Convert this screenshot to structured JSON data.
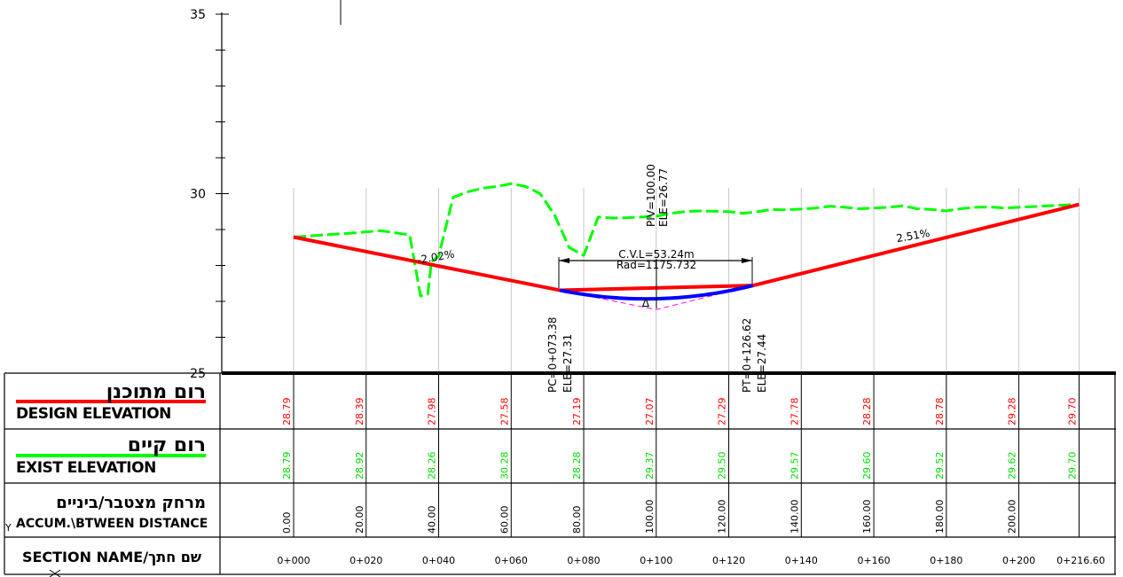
{
  "chart_data": {
    "type": "line",
    "y_axis": {
      "ylim": [
        25,
        35
      ],
      "ticks": [
        25,
        30,
        35
      ]
    },
    "x_axis": {
      "xlim": [
        0,
        216.6
      ]
    },
    "stations": [
      0,
      20,
      40,
      60,
      80,
      100,
      120,
      140,
      160,
      180,
      200,
      216.6
    ],
    "series": [
      {
        "key": "design",
        "color": "#ff0000",
        "x": [
          0,
          73.38,
          126.62,
          216.6
        ],
        "y": [
          28.79,
          27.31,
          27.44,
          29.7
        ]
      },
      {
        "key": "vertical_curve",
        "color": "#0000ff",
        "x": [
          73.38,
          80,
          90,
          100,
          110,
          120,
          126.62
        ],
        "y": [
          27.31,
          27.19,
          27.11,
          27.07,
          27.11,
          27.29,
          27.44
        ]
      },
      {
        "key": "exist",
        "color": "#00ff00",
        "dashed": true,
        "x": [
          0,
          8,
          16,
          24,
          32,
          35,
          37,
          38,
          40,
          44,
          48,
          52,
          56,
          60,
          64,
          68,
          72,
          76,
          80,
          84,
          88,
          92,
          96,
          100,
          104,
          108,
          112,
          116,
          120,
          124,
          128,
          132,
          136,
          140,
          144,
          148,
          152,
          156,
          160,
          164,
          168,
          172,
          176,
          180,
          184,
          188,
          192,
          196,
          200,
          204,
          208,
          212,
          216.6
        ],
        "y": [
          28.79,
          28.85,
          28.9,
          28.97,
          28.85,
          27.15,
          27.2,
          28.1,
          28.26,
          29.9,
          30.05,
          30.15,
          30.2,
          30.28,
          30.2,
          30.0,
          29.4,
          28.5,
          28.28,
          29.35,
          29.32,
          29.33,
          29.35,
          29.37,
          29.45,
          29.5,
          29.52,
          29.51,
          29.5,
          29.45,
          29.5,
          29.56,
          29.55,
          29.57,
          29.6,
          29.65,
          29.62,
          29.58,
          29.6,
          29.62,
          29.66,
          29.58,
          29.56,
          29.52,
          29.58,
          29.62,
          29.63,
          29.6,
          29.62,
          29.64,
          29.66,
          29.68,
          29.7
        ]
      },
      {
        "key": "tangent_extension",
        "color": "#ff00ff",
        "dashed": true,
        "x": [
          73.38,
          100,
          126.62
        ],
        "y": [
          27.31,
          26.77,
          27.44
        ]
      }
    ],
    "annotations": {
      "slope_left": "-2.02%",
      "slope_right": "2.51%",
      "pvi": "PIV=100.00",
      "pvi_ele": "ELE=26.77",
      "pc": "PC=0+073.38",
      "pc_ele": "ELE=27.31",
      "pt": "PT=0+126.62",
      "pt_ele": "ELE=27.44",
      "cvl": "C.V.L=53.24m",
      "rad": "Rad=1175.732",
      "delta": "Δ"
    },
    "rows": {
      "design_elevation": [
        "28.79",
        "28.39",
        "27.98",
        "27.58",
        "27.19",
        "27.07",
        "27.29",
        "27.78",
        "28.28",
        "28.78",
        "29.28",
        "29.70"
      ],
      "exist_elevation": [
        "28.79",
        "28.92",
        "28.26",
        "30.28",
        "28.28",
        "29.37",
        "29.50",
        "29.57",
        "29.60",
        "29.52",
        "29.62",
        "29.70"
      ],
      "distance": [
        "0.00",
        "20.00",
        "40.00",
        "60.00",
        "80.00",
        "100.00",
        "120.00",
        "140.00",
        "160.00",
        "180.00",
        "200.00",
        ""
      ],
      "section_names": [
        "0+000",
        "0+020",
        "0+040",
        "0+060",
        "0+080",
        "0+100",
        "0+120",
        "0+140",
        "0+160",
        "0+180",
        "0+200",
        "0+216.60"
      ]
    }
  },
  "table_headers": {
    "design_heb": "רום מתוכנן",
    "design_eng": "DESIGN ELEVATION",
    "exist_heb": "רום קיים",
    "exist_eng": "EXIST ELEVATION",
    "dist_heb": "מרחק מצטבר/ביניים",
    "dist_eng": "ACCUM.\\BTWEEN DISTANCE",
    "section_label": "SECTION NAME/שם חתך",
    "side_mark": "Y"
  },
  "colors": {
    "design": "#ff0000",
    "exist": "#00ff00",
    "curve": "#0000ff",
    "grid": "#c8c8c8",
    "tangent": "#ff00ff"
  }
}
